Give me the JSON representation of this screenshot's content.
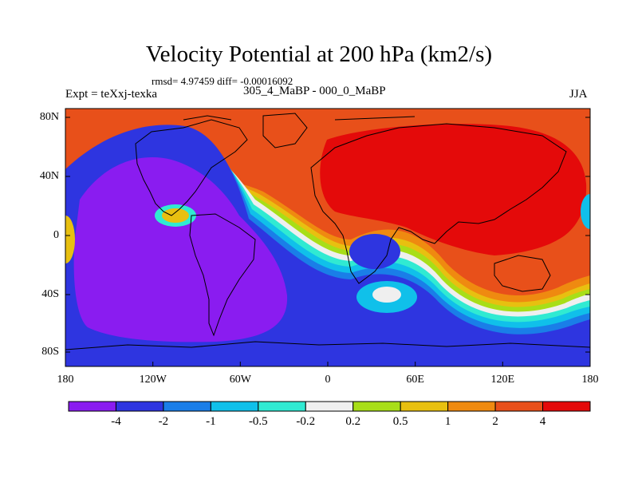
{
  "title": "Velocity Potential at 200 hPa (km2/s)",
  "stats": "rmsd= 4.97459 diff= -0.00016092",
  "experiment": "Expt = teXxj-texka",
  "difference_label": "305_4_MaBP - 000_0_MaBP",
  "season": "JJA",
  "lat_labels": [
    "80N",
    "40N",
    "0",
    "40S",
    "80S"
  ],
  "lon_labels": [
    "180",
    "120W",
    "60W",
    "0",
    "60E",
    "120E",
    "180"
  ],
  "colorbar": {
    "labels": [
      "-4",
      "-2",
      "-1",
      "-0.5",
      "-0.2",
      "0.2",
      "0.5",
      "1",
      "2",
      "4"
    ],
    "colors": [
      "#8a1cf0",
      "#2e35e0",
      "#1a7ee8",
      "#10c0ea",
      "#30ead2",
      "#efefef",
      "#a8de18",
      "#e8c010",
      "#ef8a10",
      "#e8501a",
      "#e40a0a"
    ]
  }
}
